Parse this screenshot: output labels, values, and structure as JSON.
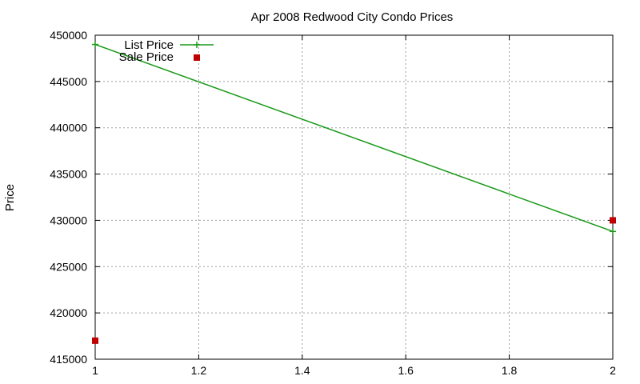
{
  "chart_data": {
    "type": "line",
    "title": "Apr 2008 Redwood City Condo Prices",
    "xlabel": "",
    "ylabel": "Price",
    "xlim": [
      1,
      2
    ],
    "ylim": [
      415000,
      450000
    ],
    "x_ticks": [
      1,
      1.2,
      1.4,
      1.6,
      1.8,
      2
    ],
    "x_tick_labels": [
      "1",
      "1.2",
      "1.4",
      "1.6",
      "1.8",
      "2"
    ],
    "y_ticks": [
      415000,
      420000,
      425000,
      430000,
      435000,
      440000,
      445000,
      450000
    ],
    "y_tick_labels": [
      "415000",
      "420000",
      "425000",
      "430000",
      "435000",
      "440000",
      "445000",
      "450000"
    ],
    "grid": true,
    "legend_position": "top-left",
    "series": [
      {
        "name": "List Price",
        "style": "linespoints",
        "marker": "plus",
        "color": "#1a9a1a",
        "x": [
          1,
          2
        ],
        "y": [
          449000,
          428800
        ]
      },
      {
        "name": "Sale Price",
        "style": "points",
        "marker": "square",
        "color": "#c00000",
        "x": [
          1,
          2
        ],
        "y": [
          417000,
          430000
        ]
      }
    ]
  }
}
